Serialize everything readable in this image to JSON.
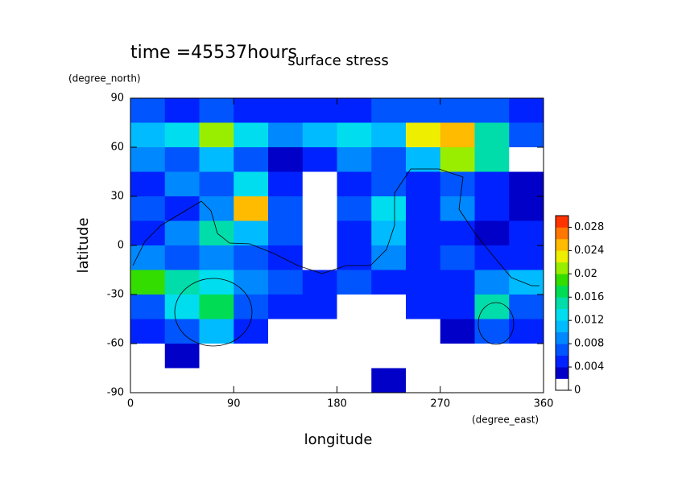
{
  "chart_data": {
    "type": "heatmap",
    "title": "surface stress",
    "subtitle": "time =45537hours",
    "x_label": "longitude",
    "x_unit": "(degree_east)",
    "y_label": "latitude",
    "y_unit": "(degree_north)",
    "x": [
      15,
      45,
      75,
      105,
      135,
      165,
      195,
      225,
      255,
      285,
      315,
      345
    ],
    "y": [
      82.5,
      67.5,
      52.5,
      37.5,
      22.5,
      7.5,
      -7.5,
      -22.5,
      -37.5,
      -52.5,
      -67.5,
      -82.5
    ],
    "z": [
      [
        0.006,
        0.005,
        0.006,
        0.005,
        0.004,
        0.004,
        0.005,
        0.006,
        0.006,
        0.007,
        0.006,
        0.005
      ],
      [
        0.01,
        0.012,
        0.02,
        0.012,
        0.008,
        0.01,
        0.012,
        0.01,
        0.022,
        0.024,
        0.014,
        0.006
      ],
      [
        0.008,
        0.006,
        0.01,
        0.006,
        0.003,
        0.004,
        0.008,
        0.006,
        0.01,
        0.02,
        0.014,
        0.001
      ],
      [
        0.004,
        0.008,
        0.006,
        0.012,
        0.004,
        0.001,
        0.004,
        0.006,
        0.004,
        0.006,
        0.004,
        0.002
      ],
      [
        0.006,
        0.004,
        0.008,
        0.024,
        0.006,
        0.001,
        0.006,
        0.012,
        0.004,
        0.008,
        0.004,
        0.002
      ],
      [
        0.004,
        0.008,
        0.014,
        0.01,
        0.006,
        0.001,
        0.004,
        0.01,
        0.004,
        0.004,
        0.002,
        0.004
      ],
      [
        0.008,
        0.006,
        0.008,
        0.006,
        0.004,
        0.001,
        0.004,
        0.008,
        0.004,
        0.006,
        0.004,
        0.004
      ],
      [
        0.018,
        0.014,
        0.012,
        0.008,
        0.006,
        0.004,
        0.006,
        0.004,
        0.004,
        0.004,
        0.008,
        0.01
      ],
      [
        0.006,
        0.012,
        0.016,
        0.006,
        0.004,
        0.004,
        0.001,
        0.001,
        0.004,
        0.004,
        0.014,
        0.006
      ],
      [
        0.004,
        0.006,
        0.01,
        0.004,
        0.001,
        0.001,
        0.001,
        0.001,
        0.001,
        0.003,
        0.006,
        0.004
      ],
      [
        0.001,
        0.003,
        0.001,
        0.001,
        0.001,
        0.001,
        0.001,
        0.001,
        0.001,
        0.001,
        0.001,
        0.001
      ],
      [
        0,
        0,
        0,
        0,
        0,
        0,
        0,
        0.003,
        0,
        0,
        0,
        0
      ]
    ],
    "xlim": [
      0,
      360
    ],
    "ylim": [
      -90,
      90
    ],
    "xticks": [
      0,
      90,
      180,
      270,
      360
    ],
    "yticks": [
      -90,
      -60,
      -30,
      0,
      30,
      60,
      90
    ],
    "zlim": [
      0,
      0.03
    ],
    "zticks": [
      0,
      0.004,
      0.008,
      0.012,
      0.016,
      0.02,
      0.024,
      0.028
    ],
    "colors": [
      "#ffffff",
      "#0000c8",
      "#0022ff",
      "#0055ff",
      "#0088ff",
      "#00bbff",
      "#00ddee",
      "#00ddaa",
      "#00dd55",
      "#33dd00",
      "#99ee00",
      "#eeee00",
      "#ffbb00",
      "#ff7700",
      "#ff3300"
    ]
  }
}
